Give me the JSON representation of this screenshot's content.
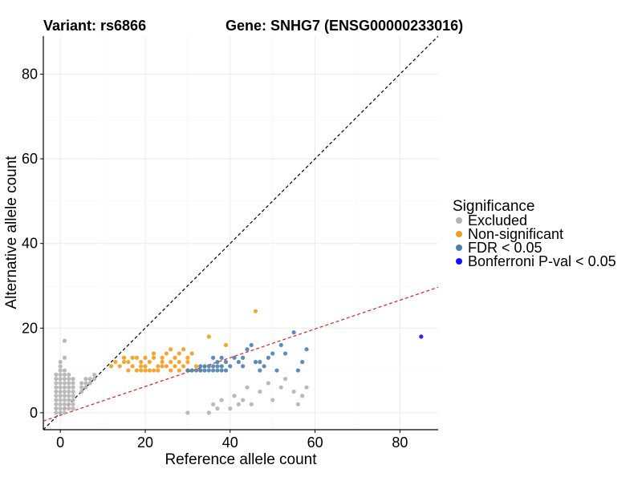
{
  "chart_data": {
    "type": "scatter",
    "title_left": "Variant: rs6866",
    "title_right": "Gene: SNHG7 (ENSG00000233016)",
    "xlabel": "Reference allele count",
    "ylabel": "Alternative allele count",
    "xlim": [
      -4,
      89
    ],
    "ylim": [
      -4,
      89
    ],
    "xticks": [
      0,
      20,
      40,
      60,
      80
    ],
    "yticks": [
      0,
      20,
      40,
      60,
      80
    ],
    "grid": true,
    "legend": {
      "title": "Significance",
      "position": "right",
      "entries": [
        {
          "label": "Excluded",
          "color": "#b3b3b3"
        },
        {
          "label": "Non-significant",
          "color": "#f39c1a"
        },
        {
          "label": "FDR < 0.05",
          "color": "#4a7fb3"
        },
        {
          "label": "Bonferroni P-val < 0.05",
          "color": "#1010ff"
        }
      ]
    },
    "reference_lines": [
      {
        "name": "identity",
        "slope": 1.0,
        "intercept": 0,
        "color": "#000000",
        "dash": "dashed"
      },
      {
        "name": "fit",
        "slope": 0.34,
        "intercept": -0.6,
        "color": "#e0201a",
        "dash": "dashed"
      }
    ],
    "series": [
      {
        "name": "Excluded",
        "color": "#b3b3b3",
        "points": [
          [
            0,
            0
          ],
          [
            0,
            1
          ],
          [
            0,
            2
          ],
          [
            0,
            3
          ],
          [
            0,
            4
          ],
          [
            0,
            5
          ],
          [
            0,
            6
          ],
          [
            0,
            7
          ],
          [
            0,
            8
          ],
          [
            0,
            9
          ],
          [
            0,
            10
          ],
          [
            0,
            11
          ],
          [
            0,
            12
          ],
          [
            1,
            0
          ],
          [
            1,
            1
          ],
          [
            1,
            2
          ],
          [
            1,
            3
          ],
          [
            1,
            4
          ],
          [
            1,
            5
          ],
          [
            1,
            6
          ],
          [
            1,
            7
          ],
          [
            1,
            8
          ],
          [
            1,
            9
          ],
          [
            1,
            10
          ],
          [
            1,
            13
          ],
          [
            1,
            17
          ],
          [
            2,
            1
          ],
          [
            2,
            2
          ],
          [
            2,
            3
          ],
          [
            2,
            4
          ],
          [
            2,
            5
          ],
          [
            2,
            6
          ],
          [
            2,
            7
          ],
          [
            2,
            8
          ],
          [
            2,
            9
          ],
          [
            3,
            1
          ],
          [
            3,
            2
          ],
          [
            3,
            3
          ],
          [
            3,
            4
          ],
          [
            3,
            5
          ],
          [
            3,
            6
          ],
          [
            3,
            7
          ],
          [
            3,
            8
          ],
          [
            -1,
            0
          ],
          [
            -1,
            1
          ],
          [
            -1,
            2
          ],
          [
            -1,
            3
          ],
          [
            -1,
            4
          ],
          [
            -1,
            5
          ],
          [
            -1,
            6
          ],
          [
            -1,
            7
          ],
          [
            -1,
            8
          ],
          [
            -1,
            9
          ],
          [
            5,
            5
          ],
          [
            5,
            6
          ],
          [
            5,
            7
          ],
          [
            6,
            6
          ],
          [
            6,
            7
          ],
          [
            6,
            8
          ],
          [
            7,
            7
          ],
          [
            7,
            8
          ],
          [
            8,
            8
          ],
          [
            8,
            9
          ],
          [
            30,
            0
          ],
          [
            35,
            0
          ],
          [
            37,
            1
          ],
          [
            40,
            1
          ],
          [
            42,
            2
          ],
          [
            45,
            2
          ],
          [
            50,
            3
          ],
          [
            55,
            5
          ],
          [
            56,
            2
          ],
          [
            57,
            4
          ],
          [
            58,
            6
          ],
          [
            52,
            6
          ],
          [
            47,
            5
          ],
          [
            44,
            6
          ],
          [
            49,
            7
          ],
          [
            53,
            8
          ],
          [
            41,
            4
          ],
          [
            43,
            3
          ],
          [
            38,
            3
          ],
          [
            36,
            2
          ]
        ]
      },
      {
        "name": "Non-significant",
        "color": "#f39c1a",
        "points": [
          [
            12,
            11
          ],
          [
            13,
            12
          ],
          [
            14,
            11
          ],
          [
            15,
            13
          ],
          [
            15,
            12
          ],
          [
            16,
            10
          ],
          [
            17,
            11
          ],
          [
            18,
            10
          ],
          [
            18,
            13
          ],
          [
            19,
            10
          ],
          [
            19,
            12
          ],
          [
            20,
            10
          ],
          [
            20,
            11
          ],
          [
            21,
            12
          ],
          [
            21,
            10
          ],
          [
            22,
            14
          ],
          [
            22,
            13
          ],
          [
            22,
            10
          ],
          [
            23,
            10
          ],
          [
            23,
            11
          ],
          [
            24,
            12
          ],
          [
            24,
            11
          ],
          [
            25,
            11
          ],
          [
            25,
            14
          ],
          [
            26,
            10
          ],
          [
            26,
            12
          ],
          [
            27,
            11
          ],
          [
            27,
            13
          ],
          [
            28,
            10
          ],
          [
            28,
            14
          ],
          [
            29,
            11
          ],
          [
            29,
            15
          ],
          [
            30,
            10
          ],
          [
            30,
            13
          ],
          [
            30,
            12
          ],
          [
            31,
            14
          ],
          [
            31,
            10
          ],
          [
            32,
            11
          ],
          [
            35,
            18
          ],
          [
            39,
            16
          ],
          [
            46,
            24
          ],
          [
            33,
            10
          ],
          [
            28,
            12
          ],
          [
            26,
            15
          ],
          [
            24,
            13
          ],
          [
            20,
            13
          ],
          [
            19,
            11
          ],
          [
            17,
            13
          ],
          [
            16,
            12
          ]
        ]
      },
      {
        "name": "FDR < 0.05",
        "color": "#4a7fb3",
        "points": [
          [
            30,
            10
          ],
          [
            31,
            10
          ],
          [
            32,
            10
          ],
          [
            33,
            10
          ],
          [
            34,
            10
          ],
          [
            35,
            10
          ],
          [
            36,
            10
          ],
          [
            37,
            10
          ],
          [
            38,
            10
          ],
          [
            39,
            10
          ],
          [
            33,
            11
          ],
          [
            34,
            11
          ],
          [
            35,
            11
          ],
          [
            36,
            11
          ],
          [
            37,
            11
          ],
          [
            38,
            11
          ],
          [
            39,
            12
          ],
          [
            37,
            12
          ],
          [
            36,
            13
          ],
          [
            38,
            13
          ],
          [
            40,
            11
          ],
          [
            41,
            13
          ],
          [
            42,
            12
          ],
          [
            43,
            13
          ],
          [
            44,
            15
          ],
          [
            45,
            16
          ],
          [
            46,
            12
          ],
          [
            47,
            10
          ],
          [
            48,
            11
          ],
          [
            49,
            13
          ],
          [
            50,
            14
          ],
          [
            51,
            10
          ],
          [
            52,
            16
          ],
          [
            53,
            14
          ],
          [
            55,
            19
          ],
          [
            56,
            10
          ],
          [
            57,
            12
          ],
          [
            58,
            15
          ],
          [
            43,
            11
          ],
          [
            47,
            12
          ]
        ]
      },
      {
        "name": "Bonferroni P-val < 0.05",
        "color": "#1010ff",
        "points": [
          [
            85,
            18
          ]
        ]
      }
    ]
  }
}
